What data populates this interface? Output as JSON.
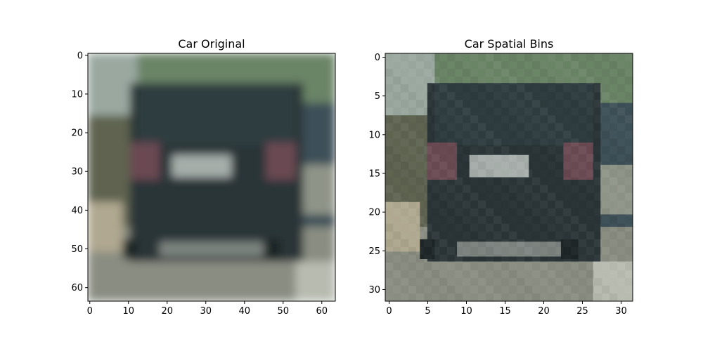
{
  "figure": {
    "panels": [
      {
        "title": "Car Original",
        "grid": 64,
        "x_ticks": [
          "0",
          "10",
          "20",
          "30",
          "40",
          "50",
          "60"
        ],
        "y_ticks": [
          "0",
          "10",
          "20",
          "30",
          "40",
          "50",
          "60"
        ]
      },
      {
        "title": "Car Spatial Bins",
        "grid": 32,
        "x_ticks": [
          "0",
          "5",
          "10",
          "15",
          "20",
          "25",
          "30"
        ],
        "y_ticks": [
          "0",
          "5",
          "10",
          "15",
          "20",
          "25",
          "30"
        ]
      }
    ]
  },
  "colors": {
    "sky_top": "#9aa8a0",
    "foliage": "#6a8466",
    "car_body": "#2b3538",
    "car_dark": "#1e2628",
    "rear_window": "#2f3d40",
    "tail_light": "#6a4a52",
    "plate": "#a6aeaa",
    "bumper_strip": "#7d8480",
    "road": "#8a8e82",
    "road_light": "#b8bcb0",
    "left_bg": "#5e6450",
    "right_car": "#3e5058"
  }
}
